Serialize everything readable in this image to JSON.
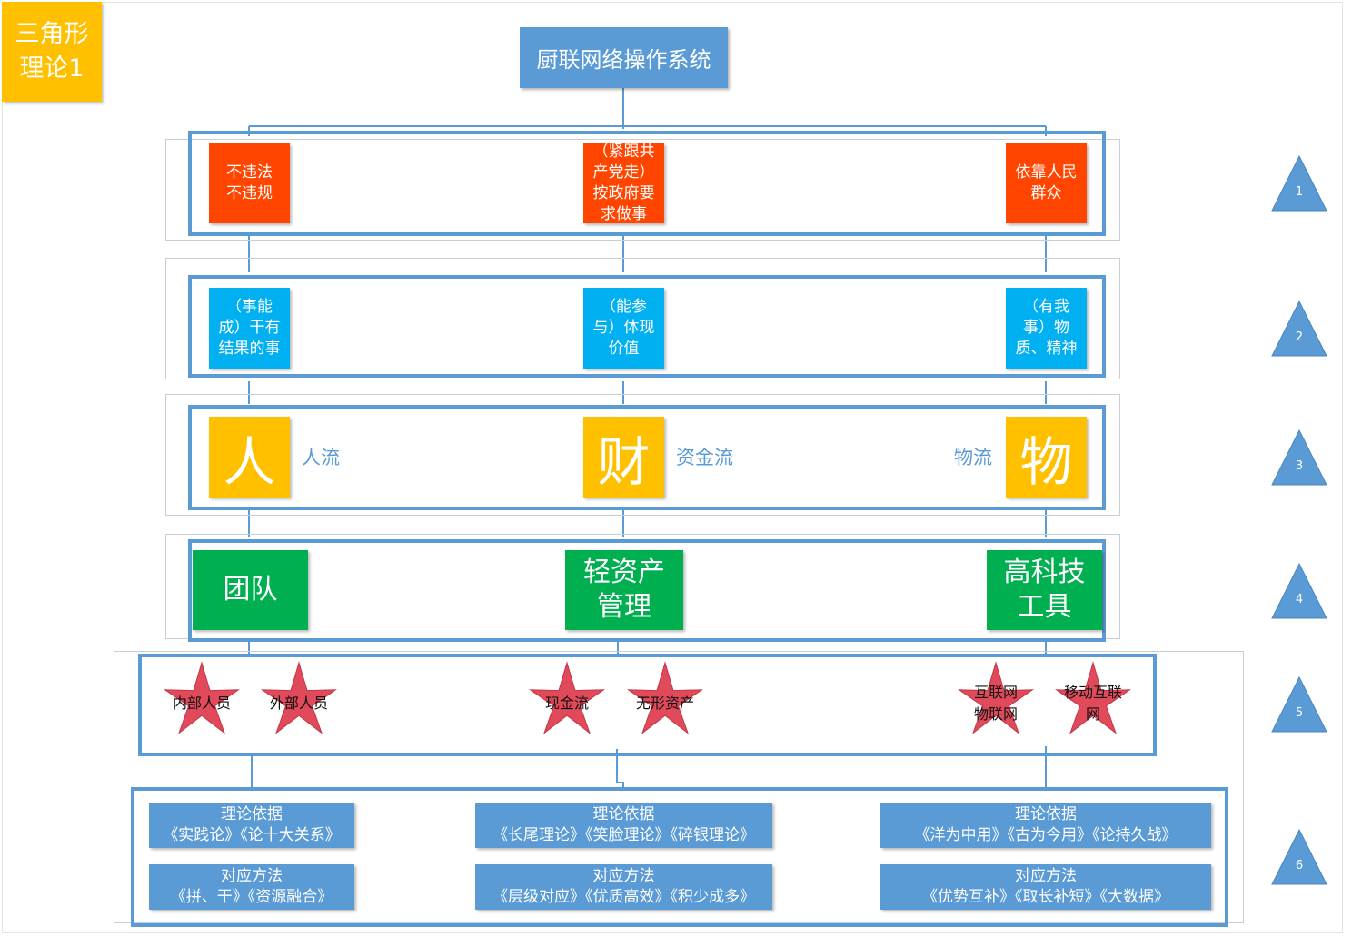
{
  "badge": {
    "line1": "三角形",
    "line2": "理论1"
  },
  "title": "厨联网络操作系统",
  "row1": {
    "left": [
      "不违法",
      "不违规"
    ],
    "center": [
      "（紧跟共",
      "产党走）",
      "按政府要",
      "求做事"
    ],
    "right": [
      "依靠人民",
      "群众"
    ]
  },
  "row2": {
    "left": [
      "（事能",
      "成）干有",
      "结果的事"
    ],
    "center": [
      "（能参",
      "与）体现",
      "价值"
    ],
    "right": [
      "（有我",
      "事）物",
      "质、精神"
    ]
  },
  "row3": {
    "left": "人",
    "left_label": "人流",
    "center": "财",
    "center_label": "资金流",
    "right": "物",
    "right_label": "物流"
  },
  "row4": {
    "left": [
      "团队"
    ],
    "center": [
      "轻资产",
      "管理"
    ],
    "right": [
      "高科技",
      "工具"
    ]
  },
  "row5": {
    "stars": [
      {
        "lines": [
          "内部人员"
        ]
      },
      {
        "lines": [
          "外部人员"
        ]
      },
      {
        "lines": [
          "现金流"
        ]
      },
      {
        "lines": [
          "无形资产"
        ]
      },
      {
        "lines": [
          "互联网",
          "物联网"
        ]
      },
      {
        "lines": [
          "移动互联",
          "网"
        ]
      }
    ]
  },
  "row6": {
    "left": {
      "theory": [
        "理论依据",
        "《实践论》《论十大关系》"
      ],
      "method": [
        "对应方法",
        "《拼、干》《资源融合》"
      ]
    },
    "center": {
      "theory": [
        "理论依据",
        "《长尾理论》《笑脸理论》《碎银理论》"
      ],
      "method": [
        "对应方法",
        "《层级对应》《优质高效》《积少成多》"
      ]
    },
    "right": {
      "theory": [
        "理论依据",
        "《洋为中用》《古为今用》《论持久战》"
      ],
      "method": [
        "对应方法",
        "《优势互补》《取长补短》《大数据》"
      ]
    }
  },
  "levels": [
    "1",
    "2",
    "3",
    "4",
    "5",
    "6"
  ],
  "colors": {
    "red": "#ff4500",
    "cyan": "#00b0f0",
    "yellow": "#ffc000",
    "green": "#00b050",
    "blue": "#5b9bd5",
    "star": "#e04a5a"
  }
}
